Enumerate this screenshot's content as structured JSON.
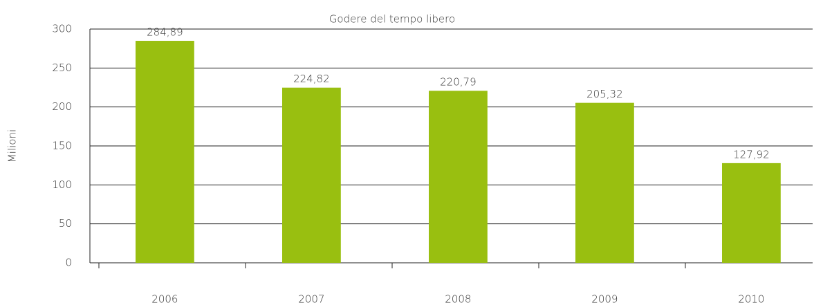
{
  "chart_data": {
    "type": "bar",
    "title": "Godere del tempo libero",
    "y_label": "Milioni",
    "categories": [
      "2006",
      "2007",
      "2008",
      "2009",
      "2010"
    ],
    "values": [
      284.89,
      224.82,
      220.79,
      205.32,
      127.92
    ],
    "value_labels": [
      "284,89",
      "224,82",
      "220,79",
      "205,32",
      "127,92"
    ],
    "color": "#99bf10",
    "ylim": [
      0,
      300
    ],
    "yticks": [
      0,
      50,
      100,
      150,
      200,
      250,
      300
    ],
    "grid": true
  }
}
